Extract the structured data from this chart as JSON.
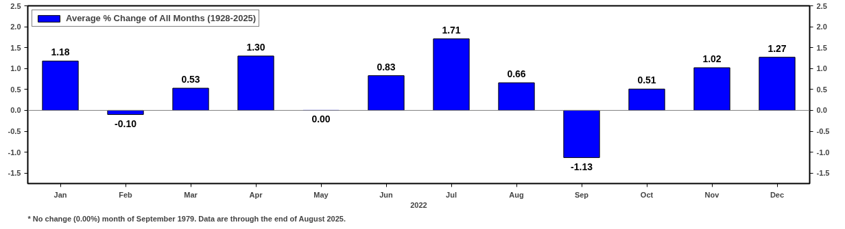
{
  "chart_data": {
    "type": "bar",
    "categories": [
      "Jan",
      "Feb",
      "Mar",
      "Apr",
      "May",
      "Jun",
      "Jul",
      "Aug",
      "Sep",
      "Oct",
      "Nov",
      "Dec"
    ],
    "series": [
      {
        "name": "Average % Change of All Months (1928-2025)",
        "color": "#0000ff",
        "values": [
          1.18,
          -0.1,
          0.53,
          1.3,
          0.0,
          0.83,
          1.71,
          0.66,
          -1.13,
          0.51,
          1.02,
          1.27
        ],
        "value_labels": [
          "1.18",
          "-0.10",
          "0.53",
          "1.30",
          "0.00",
          "0.83",
          "1.71",
          "0.66",
          "-1.13",
          "0.51",
          "1.02",
          "1.27"
        ]
      }
    ],
    "xlabel": "2022",
    "ylim": [
      -1.75,
      2.5
    ],
    "yticks": [
      {
        "value": -1.5,
        "label": "-1.5"
      },
      {
        "value": -1,
        "label": "-1.0"
      },
      {
        "value": -0.5,
        "label": "-0.5"
      },
      {
        "value": 0,
        "label": "0.0"
      },
      {
        "value": 0.5,
        "label": "0.5"
      },
      {
        "value": 1,
        "label": "1.0"
      },
      {
        "value": 1.5,
        "label": "1.5"
      },
      {
        "value": 2,
        "label": "2.0"
      },
      {
        "value": 2.5,
        "label": "2.5"
      }
    ],
    "y2lim": [
      -1.75,
      2.5
    ],
    "y2ticks": [
      {
        "value": -1.5,
        "label": "-1.5"
      },
      {
        "value": -1,
        "label": "-1.0"
      },
      {
        "value": -0.5,
        "label": "-0.5"
      },
      {
        "value": 0,
        "label": "0.0"
      },
      {
        "value": 0.5,
        "label": "0.5"
      },
      {
        "value": 1,
        "label": "1.0"
      },
      {
        "value": 1.5,
        "label": "1.5"
      },
      {
        "value": 2,
        "label": "2.0"
      },
      {
        "value": 2.5,
        "label": "2.5"
      }
    ],
    "ref_lines": [
      {
        "axis": "y",
        "value": 0,
        "color": "#808080"
      }
    ],
    "grid": false,
    "legend": "top left",
    "annotations": [
      "* No change (0.00%) month of September 1979. Data are through the end of August 2025."
    ]
  }
}
